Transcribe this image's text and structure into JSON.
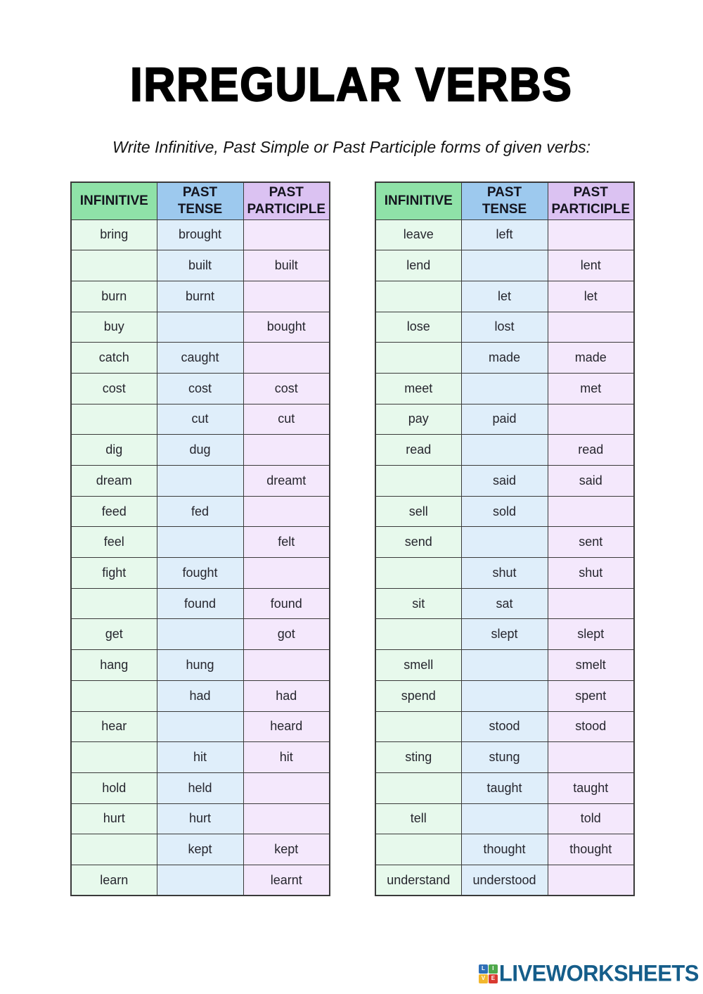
{
  "page": {
    "title": "IRREGULAR VERBS",
    "subtitle": "Write Infinitive, Past Simple or Past Participle forms of given verbs:"
  },
  "table_headers": [
    "INFINITIVE",
    "PAST TENSE",
    "PAST PARTICIPLE"
  ],
  "tables": [
    {
      "rows": [
        [
          "bring",
          "brought",
          ""
        ],
        [
          "",
          "built",
          "built"
        ],
        [
          "burn",
          "burnt",
          ""
        ],
        [
          "buy",
          "",
          "bought"
        ],
        [
          "catch",
          "caught",
          ""
        ],
        [
          "cost",
          "cost",
          "cost"
        ],
        [
          "",
          "cut",
          "cut"
        ],
        [
          "dig",
          "dug",
          ""
        ],
        [
          "dream",
          "",
          "dreamt"
        ],
        [
          "feed",
          "fed",
          ""
        ],
        [
          "feel",
          "",
          "felt"
        ],
        [
          "fight",
          "fought",
          ""
        ],
        [
          "",
          "found",
          "found"
        ],
        [
          "get",
          "",
          "got"
        ],
        [
          "hang",
          "hung",
          ""
        ],
        [
          "",
          "had",
          "had"
        ],
        [
          "hear",
          "",
          "heard"
        ],
        [
          "",
          "hit",
          "hit"
        ],
        [
          "hold",
          "held",
          ""
        ],
        [
          "hurt",
          "hurt",
          ""
        ],
        [
          "",
          "kept",
          "kept"
        ],
        [
          "learn",
          "",
          "learnt"
        ]
      ]
    },
    {
      "rows": [
        [
          "leave",
          "left",
          ""
        ],
        [
          "lend",
          "",
          "lent"
        ],
        [
          "",
          "let",
          "let"
        ],
        [
          "lose",
          "lost",
          ""
        ],
        [
          "",
          "made",
          "made"
        ],
        [
          "meet",
          "",
          "met"
        ],
        [
          "pay",
          "paid",
          ""
        ],
        [
          "read",
          "",
          "read"
        ],
        [
          "",
          "said",
          "said"
        ],
        [
          "sell",
          "sold",
          ""
        ],
        [
          "send",
          "",
          "sent"
        ],
        [
          "",
          "shut",
          "shut"
        ],
        [
          "sit",
          "sat",
          ""
        ],
        [
          "",
          "slept",
          "slept"
        ],
        [
          "smell",
          "",
          "smelt"
        ],
        [
          "spend",
          "",
          "spent"
        ],
        [
          "",
          "stood",
          "stood"
        ],
        [
          "sting",
          "stung",
          ""
        ],
        [
          "",
          "taught",
          "taught"
        ],
        [
          "tell",
          "",
          "told"
        ],
        [
          "",
          "thought",
          "thought"
        ],
        [
          "understand",
          "understood",
          ""
        ]
      ]
    }
  ],
  "colors": {
    "header_infinitive": "#8fe2a8",
    "header_past_tense": "#9dc9ee",
    "header_past_participle": "#dbc2f2",
    "cell_infinitive": "#e7f9ec",
    "cell_past_tense": "#dfeefa",
    "cell_past_participle": "#f4e8fc",
    "border": "#3a3a3a",
    "logo_text": "#155d8a"
  },
  "footer": {
    "logo_text": "LIVEWORKSHEETS",
    "logo_squares": [
      {
        "letter": "L",
        "color": "#2f6fb7"
      },
      {
        "letter": "I",
        "color": "#4fa84b"
      },
      {
        "letter": "V",
        "color": "#f2b72e"
      },
      {
        "letter": "E",
        "color": "#d93a30"
      }
    ]
  }
}
